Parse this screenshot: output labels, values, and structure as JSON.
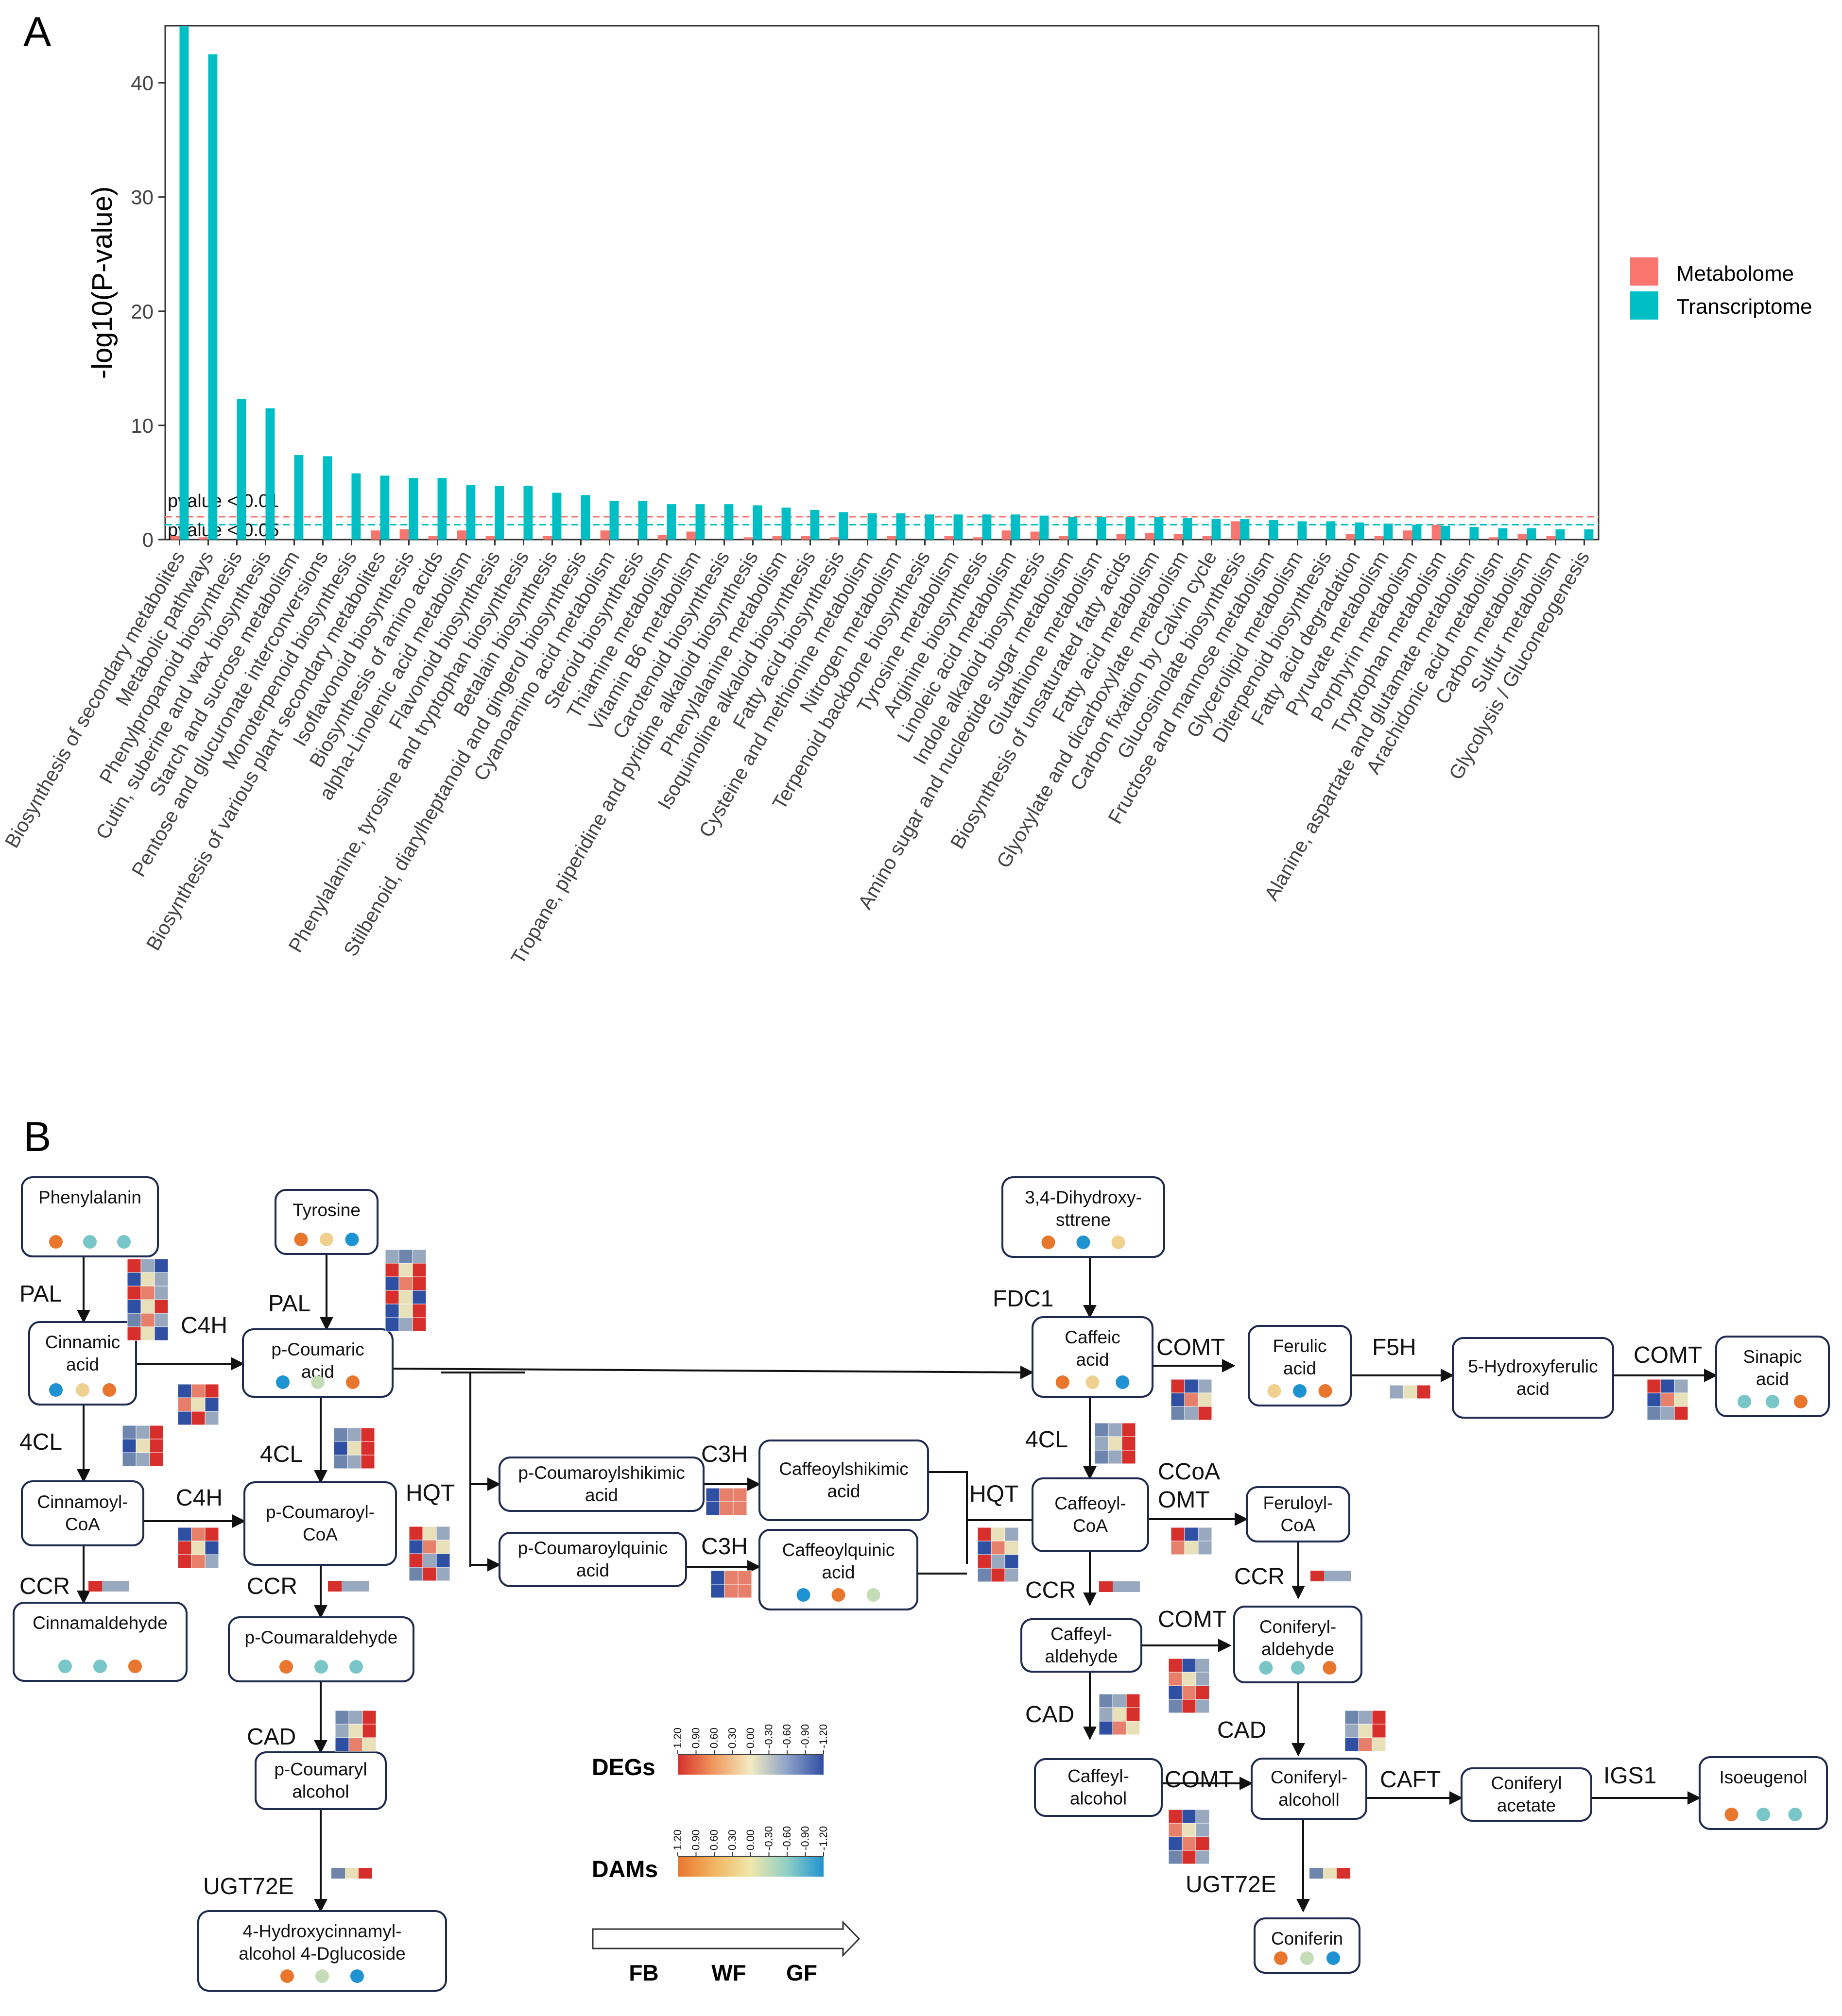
{
  "panel_labels": {
    "a": "A",
    "b": "B"
  },
  "chart_data": {
    "type": "bar",
    "title": "",
    "xlabel": "",
    "ylabel": "-log10(P-value)",
    "ylim": [
      0,
      45
    ],
    "yticks": [
      0,
      10,
      20,
      30,
      40
    ],
    "grid": false,
    "legend_position": "right",
    "categories": [
      "Biosynthesis of secondary metabolites",
      "Metabolic pathways",
      "Phenylpropanoid biosynthesis",
      "Cutin, suberine and wax biosynthesis",
      "Starch and sucrose metabolism",
      "Pentose and glucuronate interconversions",
      "Monoterpenoid biosynthesis",
      "Biosynthesis of various plant secondary metabolites",
      "Isoflavonoid biosynthesis",
      "Biosynthesis of amino acids",
      "alpha-Linolenic acid metabolism",
      "Flavonoid biosynthesis",
      "Phenylalanine, tyrosine and tryptophan biosynthesis",
      "Betalain biosynthesis",
      "Stilbenoid, diarylheptanoid and gingerol biosynthesis",
      "Cyanoamino acid metabolism",
      "Steroid biosynthesis",
      "Thiamine metabolism",
      "Vitamin B6 metabolism",
      "Carotenoid biosynthesis",
      "Tropane, piperidine and pyridine alkaloid biosynthesis",
      "Phenylalanine metabolism",
      "Isoquinoline alkaloid biosynthesis",
      "Fatty acid biosynthesis",
      "Cysteine and methionine metabolism",
      "Nitrogen metabolism",
      "Terpenoid backbone biosynthesis",
      "Tyrosine metabolism",
      "Arginine biosynthesis",
      "Linoleic acid metabolism",
      "Indole alkaloid biosynthesis",
      "Amino sugar and nucleotide sugar metabolism",
      "Glutathione metabolism",
      "Biosynthesis of unsaturated fatty acids",
      "Fatty acid metabolism",
      "Glyoxylate and dicarboxylate metabolism",
      "Carbon fixation by Calvin cycle",
      "Glucosinolate biosynthesis",
      "Fructose and mannose metabolism",
      "Glycerolipid metabolism",
      "Diterpenoid biosynthesis",
      "Fatty acid degradation",
      "Pyruvate metabolism",
      "Porphyrin metabolism",
      "Tryptophan metabolism",
      "Alanine, aspartate and glutamate metabolism",
      "Arachidonic acid metabolism",
      "Carbon metabolism",
      "Sulfur metabolism",
      "Glycolysis / Gluconeogenesis"
    ],
    "series": [
      {
        "name": "Metabolome",
        "color": "#F8766D",
        "values": [
          0.3,
          0.2,
          0,
          0,
          0,
          0,
          0,
          0.8,
          0.9,
          0.3,
          0.8,
          0.3,
          0,
          0.3,
          0,
          0.8,
          0,
          0.4,
          0.7,
          0,
          0.2,
          0.3,
          0.3,
          0.2,
          0,
          0.3,
          0,
          0.3,
          0.2,
          0.8,
          0.7,
          0.3,
          0,
          0.5,
          0.6,
          0.5,
          0.3,
          1.6,
          0,
          0,
          0,
          0.5,
          0.3,
          0.8,
          1.3,
          0,
          0.2,
          0.5,
          0.3,
          0
        ]
      },
      {
        "name": "Transcriptome",
        "color": "#00BFC4",
        "values": [
          45,
          42.5,
          12.3,
          11.5,
          7.4,
          7.3,
          5.8,
          5.6,
          5.4,
          5.4,
          4.8,
          4.7,
          4.7,
          4.1,
          3.9,
          3.4,
          3.4,
          3.1,
          3.1,
          3.1,
          3.0,
          2.8,
          2.6,
          2.4,
          2.3,
          2.3,
          2.2,
          2.2,
          2.2,
          2.2,
          2.1,
          2.0,
          2.0,
          2.0,
          2.0,
          1.9,
          1.8,
          1.8,
          1.7,
          1.6,
          1.6,
          1.5,
          1.4,
          1.3,
          1.2,
          1.1,
          1.0,
          1.0,
          0.9,
          0.9
        ]
      }
    ],
    "thresholds": [
      {
        "label": "pvalue < 0.01",
        "value": 2.0,
        "color": "#F8766D"
      },
      {
        "label": "pvalue < 0.05",
        "value": 1.3,
        "color": "#00BFC4"
      }
    ]
  },
  "pathway": {
    "nodes": {
      "phenylalanin": "Phenylalanin",
      "tyrosine": "Tyrosine",
      "dihydroxy": [
        "3,4-Dihydroxy-",
        "sttrene"
      ],
      "cinnamic_acid": [
        "Cinnamic",
        "acid"
      ],
      "p_coumaric_acid": [
        "p-Coumaric",
        "acid"
      ],
      "caffeic_acid": [
        "Caffeic",
        "acid"
      ],
      "ferulic_acid": [
        "Ferulic",
        "acid"
      ],
      "hydroxyferulic": [
        "5-Hydroxyferulic",
        "acid"
      ],
      "sinapic_acid": [
        "Sinapic",
        "acid"
      ],
      "cinnamoyl_coa": [
        "Cinnamoyl-",
        "CoA"
      ],
      "p_coumaroyl_coa": [
        "p-Coumaroyl-",
        "CoA"
      ],
      "p_coumaroylshikimic": [
        "p-Coumaroylshikimic",
        "acid"
      ],
      "p_coumaroylquinic": [
        "p-Coumaroylquinic",
        "acid"
      ],
      "caffeoylshikimic": [
        "Caffeoylshikimic",
        "acid"
      ],
      "caffeoylquinic": [
        "Caffeoylquinic",
        "acid"
      ],
      "caffeoyl_coa": [
        "Caffeoyl-",
        "CoA"
      ],
      "feruloyl_coa": [
        "Feruloyl-",
        "CoA"
      ],
      "cinnamaldehyde": "Cinnamaldehyde",
      "p_coumaraldehyde": "p-Coumaraldehyde",
      "caffeyl_aldehyde": [
        "Caffeyl-",
        "aldehyde"
      ],
      "coniferyl_aldehyde": [
        "Coniferyl-",
        "aldehyde"
      ],
      "p_coumaryl_alcohol": [
        "p-Coumaryl",
        "alcohol"
      ],
      "caffeyl_alcohol": [
        "Caffeyl-",
        "alcohol"
      ],
      "coniferyl_alcohol": [
        "Coniferyl-",
        "alcoholl"
      ],
      "coniferyl_acetate": [
        "Coniferyl",
        "acetate"
      ],
      "isoeugenol": "Isoeugenol",
      "hydroxycinnamyl": [
        "4-Hydroxycinnamyl-",
        "alcohol 4-Dglucoside"
      ],
      "coniferin": "Coniferin"
    },
    "enzymes": {
      "pal1": "PAL",
      "pal2": "PAL",
      "c4h1": "C4H",
      "c4h2": "C4H",
      "cl1": "4CL",
      "cl2": "4CL",
      "cl3": "4CL",
      "ccr1": "CCR",
      "ccr2": "CCR",
      "ccr3": "CCR",
      "ccr4": "CCR",
      "hqt1": "HQT",
      "hqt2": "HQT",
      "c3h1": "C3H",
      "c3h2": "C3H",
      "fdc1": "FDC1",
      "comt1": "COMT",
      "comt2": "COMT",
      "comt3": "COMT",
      "comt4": "COMT",
      "f5h": "F5H",
      "ccoaomt1": "CCoA",
      "ccoaomt2": "OMT",
      "cad1": "CAD",
      "cad2": "CAD",
      "cad3": "CAD",
      "ugt1": "UGT72E",
      "ugt2": "UGT72E",
      "caft": "CAFT",
      "igs1": "IGS1"
    },
    "legend": {
      "degs_label": "DEGs",
      "dams_label": "DAMs",
      "scale_ticks": [
        "1.20",
        "0.90",
        "0.60",
        "0.30",
        "0.00",
        "-0.30",
        "-0.60",
        "-0.90",
        "-1.20"
      ],
      "stages": [
        "FB",
        "WF",
        "GF"
      ]
    },
    "colors": {
      "deg_red": "#D7302C",
      "deg_salmon": "#E7806A",
      "deg_beige": "#E8E0B8",
      "deg_grey": "#98A8BE",
      "deg_steel": "#6E86AE",
      "deg_blue": "#2F4FA3",
      "dam_orange": "#E8762D",
      "dam_beige": "#EFD08E",
      "dam_pale": "#C4DDB7",
      "dam_teal": "#78C6C8",
      "dam_blue": "#1F93D1",
      "node_border": "#1E2B4F"
    }
  }
}
